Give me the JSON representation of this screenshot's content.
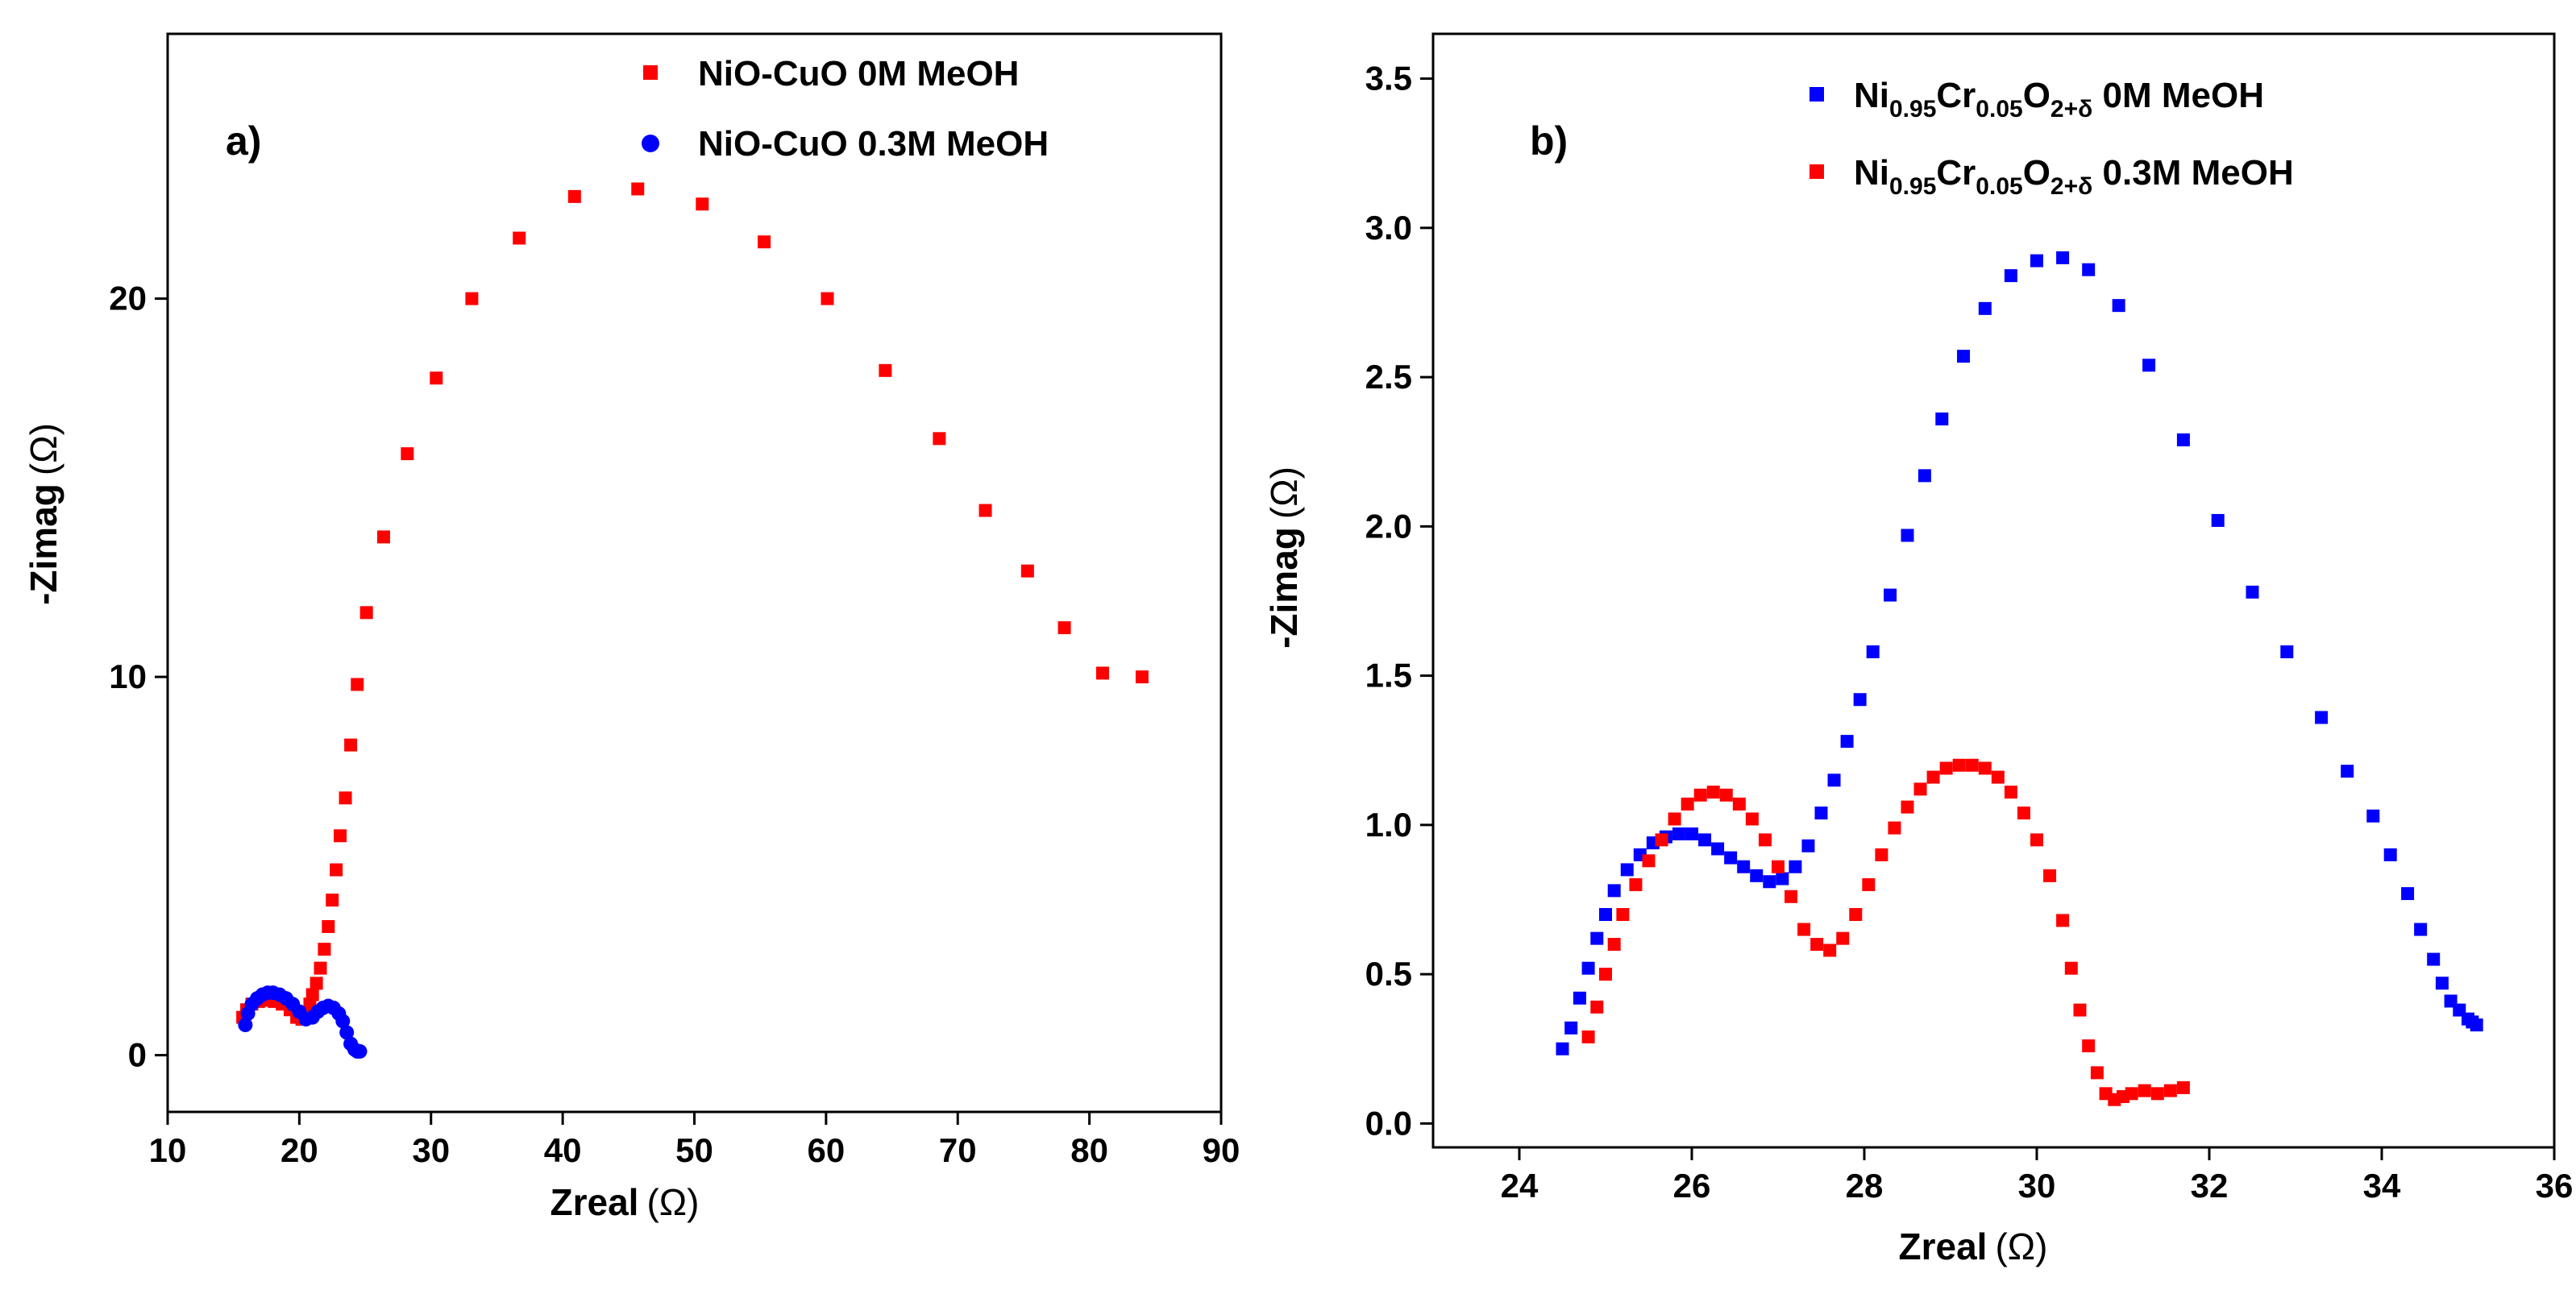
{
  "chart_data": [
    {
      "type": "scatter",
      "panel_label": "a)",
      "xlabel": "Zreal",
      "ylabel": "-Zimag",
      "unit": "(Ω)",
      "xlim": [
        10,
        90
      ],
      "ylim": [
        -1.5,
        27
      ],
      "xticks": [
        10,
        20,
        30,
        40,
        50,
        60,
        70,
        80,
        90
      ],
      "yticks": [
        0,
        10,
        20
      ],
      "grid": false,
      "legend_position": "top-right",
      "series": [
        {
          "name": "NiO-CuO 0M MeOH",
          "color": "#ff0000",
          "marker": "square",
          "x": [
            15.7,
            16.0,
            16.4,
            16.9,
            17.5,
            18.1,
            18.7,
            19.3,
            19.8,
            20.2,
            20.5,
            20.8,
            21.0,
            21.3,
            21.6,
            21.9,
            22.2,
            22.5,
            22.8,
            23.1,
            23.5,
            23.9,
            24.4,
            25.1,
            26.4,
            28.2,
            30.4,
            33.1,
            36.7,
            40.9,
            45.7,
            50.6,
            55.3,
            60.1,
            64.5,
            68.6,
            72.1,
            75.3,
            78.1,
            81.0,
            84.0
          ],
          "y": [
            1.0,
            1.2,
            1.35,
            1.42,
            1.45,
            1.42,
            1.35,
            1.2,
            1.0,
            0.95,
            1.1,
            1.35,
            1.6,
            1.9,
            2.3,
            2.8,
            3.4,
            4.1,
            4.9,
            5.8,
            6.8,
            8.2,
            9.8,
            11.7,
            13.7,
            15.9,
            17.9,
            20.0,
            21.6,
            22.7,
            22.9,
            22.5,
            21.5,
            20.0,
            18.1,
            16.3,
            14.4,
            12.8,
            11.3,
            10.1,
            10.0
          ]
        },
        {
          "name": "NiO-CuO 0.3M MeOH",
          "color": "#0000ff",
          "marker": "circle",
          "x": [
            15.9,
            16.1,
            16.4,
            16.8,
            17.2,
            17.6,
            18.0,
            18.5,
            19.0,
            19.5,
            20.0,
            20.5,
            21.0,
            21.4,
            21.8,
            22.2,
            22.6,
            23.0,
            23.3,
            23.6,
            23.9,
            24.2,
            24.4,
            24.6
          ],
          "y": [
            0.8,
            1.1,
            1.35,
            1.5,
            1.6,
            1.65,
            1.65,
            1.6,
            1.5,
            1.35,
            1.15,
            0.95,
            1.0,
            1.15,
            1.25,
            1.3,
            1.25,
            1.1,
            0.9,
            0.6,
            0.3,
            0.15,
            0.1,
            0.1
          ]
        }
      ]
    },
    {
      "type": "scatter",
      "panel_label": "b)",
      "xlabel": "Zreal",
      "ylabel": "-Zimag",
      "unit": "(Ω)",
      "xlim": [
        23,
        36
      ],
      "ylim": [
        -0.08,
        3.65
      ],
      "xticks": [
        24,
        26,
        28,
        30,
        32,
        34,
        36
      ],
      "xtick_labels": [
        "24",
        "26",
        "28",
        "30",
        "32",
        "34",
        "36"
      ],
      "yticks": [
        0.0,
        0.5,
        1.0,
        1.5,
        2.0,
        2.5,
        3.0,
        3.5
      ],
      "ytick_labels": [
        "0.0",
        "0.5",
        "1.0",
        "1.5",
        "2.0",
        "2.5",
        "3.0",
        "3.5"
      ],
      "grid": false,
      "legend_position": "top-right",
      "series": [
        {
          "name_parts": [
            "Ni",
            "0.95",
            "Cr",
            "0.05",
            "O",
            "2+δ",
            " 0M MeOH"
          ],
          "color": "#0000ff",
          "marker": "square",
          "x": [
            24.5,
            24.6,
            24.7,
            24.8,
            24.9,
            25.0,
            25.1,
            25.25,
            25.4,
            25.55,
            25.7,
            25.85,
            26.0,
            26.15,
            26.3,
            26.45,
            26.6,
            26.75,
            26.9,
            27.05,
            27.2,
            27.35,
            27.5,
            27.65,
            27.8,
            27.95,
            28.1,
            28.3,
            28.5,
            28.7,
            28.9,
            29.15,
            29.4,
            29.7,
            30.0,
            30.3,
            30.6,
            30.95,
            31.3,
            31.7,
            32.1,
            32.5,
            32.9,
            33.3,
            33.6,
            33.9,
            34.1,
            34.3,
            34.45,
            34.6,
            34.7,
            34.8,
            34.9,
            35.0,
            35.05,
            35.1
          ],
          "y": [
            0.25,
            0.32,
            0.42,
            0.52,
            0.62,
            0.7,
            0.78,
            0.85,
            0.9,
            0.94,
            0.96,
            0.97,
            0.97,
            0.95,
            0.92,
            0.89,
            0.86,
            0.83,
            0.81,
            0.82,
            0.86,
            0.93,
            1.04,
            1.15,
            1.28,
            1.42,
            1.58,
            1.77,
            1.97,
            2.17,
            2.36,
            2.57,
            2.73,
            2.84,
            2.89,
            2.9,
            2.86,
            2.74,
            2.54,
            2.29,
            2.02,
            1.78,
            1.58,
            1.36,
            1.18,
            1.03,
            0.9,
            0.77,
            0.65,
            0.55,
            0.47,
            0.41,
            0.38,
            0.35,
            0.34,
            0.33
          ]
        },
        {
          "name_parts": [
            "Ni",
            "0.95",
            "Cr",
            "0.05",
            "O",
            "2+δ",
            " 0.3M MeOH"
          ],
          "color": "#ff0000",
          "marker": "square",
          "x": [
            24.8,
            24.9,
            25.0,
            25.1,
            25.2,
            25.35,
            25.5,
            25.65,
            25.8,
            25.95,
            26.1,
            26.25,
            26.4,
            26.55,
            26.7,
            26.85,
            27.0,
            27.15,
            27.3,
            27.45,
            27.6,
            27.75,
            27.9,
            28.05,
            28.2,
            28.35,
            28.5,
            28.65,
            28.8,
            28.95,
            29.1,
            29.25,
            29.4,
            29.55,
            29.7,
            29.85,
            30.0,
            30.15,
            30.3,
            30.4,
            30.5,
            30.6,
            30.7,
            30.8,
            30.9,
            31.0,
            31.1,
            31.25,
            31.4,
            31.55,
            31.7
          ],
          "y": [
            0.29,
            0.39,
            0.5,
            0.6,
            0.7,
            0.8,
            0.88,
            0.95,
            1.02,
            1.07,
            1.1,
            1.11,
            1.1,
            1.07,
            1.02,
            0.95,
            0.86,
            0.76,
            0.65,
            0.6,
            0.58,
            0.62,
            0.7,
            0.8,
            0.9,
            0.99,
            1.06,
            1.12,
            1.16,
            1.19,
            1.2,
            1.2,
            1.19,
            1.16,
            1.11,
            1.04,
            0.95,
            0.83,
            0.68,
            0.52,
            0.38,
            0.26,
            0.17,
            0.1,
            0.08,
            0.09,
            0.1,
            0.11,
            0.1,
            0.11,
            0.12
          ]
        }
      ]
    }
  ]
}
